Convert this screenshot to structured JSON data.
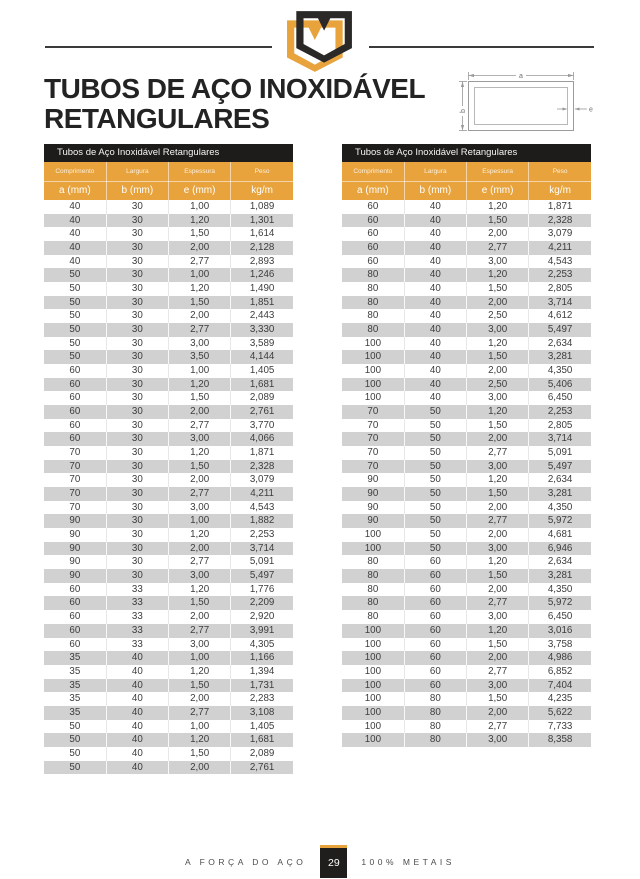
{
  "header": {
    "title_line1": "TUBOS DE AÇO INOXIDÁVEL",
    "title_line2": "RETANGULARES"
  },
  "diagram": {
    "width_label": "a",
    "height_label": "b",
    "thickness_label": "e"
  },
  "tables": {
    "header": {
      "title": "Tubos de Aço Inoxidável Retangulares",
      "groups": [
        "Comprimento",
        "Largura",
        "Espessura",
        "Peso"
      ],
      "units": [
        "a (mm)",
        "b (mm)",
        "e (mm)",
        "kg/m"
      ]
    },
    "left_rows": [
      [
        "40",
        "30",
        "1,00",
        "1,089"
      ],
      [
        "40",
        "30",
        "1,20",
        "1,301"
      ],
      [
        "40",
        "30",
        "1,50",
        "1,614"
      ],
      [
        "40",
        "30",
        "2,00",
        "2,128"
      ],
      [
        "40",
        "30",
        "2,77",
        "2,893"
      ],
      [
        "50",
        "30",
        "1,00",
        "1,246"
      ],
      [
        "50",
        "30",
        "1,20",
        "1,490"
      ],
      [
        "50",
        "30",
        "1,50",
        "1,851"
      ],
      [
        "50",
        "30",
        "2,00",
        "2,443"
      ],
      [
        "50",
        "30",
        "2,77",
        "3,330"
      ],
      [
        "50",
        "30",
        "3,00",
        "3,589"
      ],
      [
        "50",
        "30",
        "3,50",
        "4,144"
      ],
      [
        "60",
        "30",
        "1,00",
        "1,405"
      ],
      [
        "60",
        "30",
        "1,20",
        "1,681"
      ],
      [
        "60",
        "30",
        "1,50",
        "2,089"
      ],
      [
        "60",
        "30",
        "2,00",
        "2,761"
      ],
      [
        "60",
        "30",
        "2,77",
        "3,770"
      ],
      [
        "60",
        "30",
        "3,00",
        "4,066"
      ],
      [
        "70",
        "30",
        "1,20",
        "1,871"
      ],
      [
        "70",
        "30",
        "1,50",
        "2,328"
      ],
      [
        "70",
        "30",
        "2,00",
        "3,079"
      ],
      [
        "70",
        "30",
        "2,77",
        "4,211"
      ],
      [
        "70",
        "30",
        "3,00",
        "4,543"
      ],
      [
        "90",
        "30",
        "1,00",
        "1,882"
      ],
      [
        "90",
        "30",
        "1,20",
        "2,253"
      ],
      [
        "90",
        "30",
        "2,00",
        "3,714"
      ],
      [
        "90",
        "30",
        "2,77",
        "5,091"
      ],
      [
        "90",
        "30",
        "3,00",
        "5,497"
      ],
      [
        "60",
        "33",
        "1,20",
        "1,776"
      ],
      [
        "60",
        "33",
        "1,50",
        "2,209"
      ],
      [
        "60",
        "33",
        "2,00",
        "2,920"
      ],
      [
        "60",
        "33",
        "2,77",
        "3,991"
      ],
      [
        "60",
        "33",
        "3,00",
        "4,305"
      ],
      [
        "35",
        "40",
        "1,00",
        "1,166"
      ],
      [
        "35",
        "40",
        "1,20",
        "1,394"
      ],
      [
        "35",
        "40",
        "1,50",
        "1,731"
      ],
      [
        "35",
        "40",
        "2,00",
        "2,283"
      ],
      [
        "35",
        "40",
        "2,77",
        "3,108"
      ],
      [
        "50",
        "40",
        "1,00",
        "1,405"
      ],
      [
        "50",
        "40",
        "1,20",
        "1,681"
      ],
      [
        "50",
        "40",
        "1,50",
        "2,089"
      ],
      [
        "50",
        "40",
        "2,00",
        "2,761"
      ]
    ],
    "right_rows": [
      [
        "60",
        "40",
        "1,20",
        "1,871"
      ],
      [
        "60",
        "40",
        "1,50",
        "2,328"
      ],
      [
        "60",
        "40",
        "2,00",
        "3,079"
      ],
      [
        "60",
        "40",
        "2,77",
        "4,211"
      ],
      [
        "60",
        "40",
        "3,00",
        "4,543"
      ],
      [
        "80",
        "40",
        "1,20",
        "2,253"
      ],
      [
        "80",
        "40",
        "1,50",
        "2,805"
      ],
      [
        "80",
        "40",
        "2,00",
        "3,714"
      ],
      [
        "80",
        "40",
        "2,50",
        "4,612"
      ],
      [
        "80",
        "40",
        "3,00",
        "5,497"
      ],
      [
        "100",
        "40",
        "1,20",
        "2,634"
      ],
      [
        "100",
        "40",
        "1,50",
        "3,281"
      ],
      [
        "100",
        "40",
        "2,00",
        "4,350"
      ],
      [
        "100",
        "40",
        "2,50",
        "5,406"
      ],
      [
        "100",
        "40",
        "3,00",
        "6,450"
      ],
      [
        "70",
        "50",
        "1,20",
        "2,253"
      ],
      [
        "70",
        "50",
        "1,50",
        "2,805"
      ],
      [
        "70",
        "50",
        "2,00",
        "3,714"
      ],
      [
        "70",
        "50",
        "2,77",
        "5,091"
      ],
      [
        "70",
        "50",
        "3,00",
        "5,497"
      ],
      [
        "90",
        "50",
        "1,20",
        "2,634"
      ],
      [
        "90",
        "50",
        "1,50",
        "3,281"
      ],
      [
        "90",
        "50",
        "2,00",
        "4,350"
      ],
      [
        "90",
        "50",
        "2,77",
        "5,972"
      ],
      [
        "100",
        "50",
        "2,00",
        "4,681"
      ],
      [
        "100",
        "50",
        "3,00",
        "6,946"
      ],
      [
        "80",
        "60",
        "1,20",
        "2,634"
      ],
      [
        "80",
        "60",
        "1,50",
        "3,281"
      ],
      [
        "80",
        "60",
        "2,00",
        "4,350"
      ],
      [
        "80",
        "60",
        "2,77",
        "5,972"
      ],
      [
        "80",
        "60",
        "3,00",
        "6,450"
      ],
      [
        "100",
        "60",
        "1,20",
        "3,016"
      ],
      [
        "100",
        "60",
        "1,50",
        "3,758"
      ],
      [
        "100",
        "60",
        "2,00",
        "4,986"
      ],
      [
        "100",
        "60",
        "2,77",
        "6,852"
      ],
      [
        "100",
        "60",
        "3,00",
        "7,404"
      ],
      [
        "100",
        "80",
        "1,50",
        "4,235"
      ],
      [
        "100",
        "80",
        "2,00",
        "5,622"
      ],
      [
        "100",
        "80",
        "2,77",
        "7,733"
      ],
      [
        "100",
        "80",
        "3,00",
        "8,358"
      ]
    ]
  },
  "footer": {
    "tagline_left": "A FORÇA DO AÇO",
    "page_number": "29",
    "tagline_right": "100% METAIS"
  },
  "colors": {
    "accent": "#E8A33C",
    "dark": "#1D1C1A",
    "row_stripe": "#D1D1D1"
  }
}
